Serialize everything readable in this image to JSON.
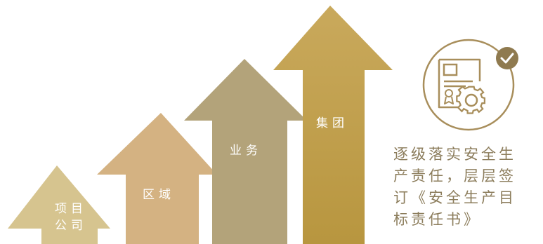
{
  "arrows": [
    {
      "label_lines": [
        "项目",
        "公司"
      ],
      "color": "#d6c48f"
    },
    {
      "label_lines": [
        "区域"
      ],
      "color": "#d4b282"
    },
    {
      "label_lines": [
        "业务"
      ],
      "color": "#b3a37a"
    },
    {
      "label_lines": [
        "集团"
      ],
      "color": "#bb9a4a"
    }
  ],
  "description": {
    "lines": [
      "逐级落实安全生",
      "产责任，层层签",
      "订《安全生产目",
      "标责任书》"
    ]
  },
  "badge": {
    "icon": "certificate-gear-check-icon",
    "ring_color": "#a88e5b",
    "check_color": "#8f7a4f"
  }
}
